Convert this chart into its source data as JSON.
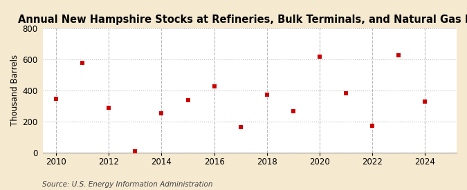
{
  "title": "Annual New Hampshire Stocks at Refineries, Bulk Terminals, and Natural Gas Plants of Propane",
  "ylabel": "Thousand Barrels",
  "source": "Source: U.S. Energy Information Administration",
  "years": [
    2010,
    2011,
    2012,
    2013,
    2014,
    2015,
    2016,
    2017,
    2018,
    2019,
    2020,
    2021,
    2022,
    2023,
    2024
  ],
  "values": [
    345,
    578,
    290,
    10,
    252,
    335,
    425,
    165,
    372,
    264,
    617,
    382,
    172,
    628,
    330
  ],
  "marker_color": "#cc0000",
  "marker_size": 5,
  "background_color": "#f5e9d0",
  "plot_bg_color": "#ffffff",
  "ylim": [
    0,
    800
  ],
  "yticks": [
    0,
    200,
    400,
    600,
    800
  ],
  "xlim": [
    2009.5,
    2025.2
  ],
  "xticks": [
    2010,
    2012,
    2014,
    2016,
    2018,
    2020,
    2022,
    2024
  ],
  "title_fontsize": 10.5,
  "axis_fontsize": 8.5,
  "source_fontsize": 7.5,
  "grid_color": "#bbbbbb",
  "grid_linestyle": ":",
  "spine_color": "#999999"
}
